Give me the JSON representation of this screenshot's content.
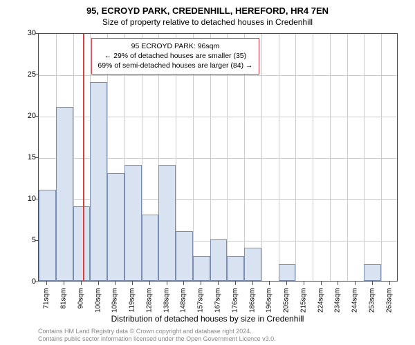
{
  "chart": {
    "type": "histogram",
    "title_main": "95, ECROYD PARK, CREDENHILL, HEREFORD, HR4 7EN",
    "title_sub": "Size of property relative to detached houses in Credenhill",
    "y_label": "Number of detached properties",
    "x_label": "Distribution of detached houses by size in Credenhill",
    "ylim": [
      0,
      30
    ],
    "ytick_step": 5,
    "yticks": [
      0,
      5,
      10,
      15,
      20,
      25,
      30
    ],
    "x_categories": [
      "71sqm",
      "81sqm",
      "90sqm",
      "100sqm",
      "109sqm",
      "119sqm",
      "128sqm",
      "138sqm",
      "148sqm",
      "157sqm",
      "167sqm",
      "176sqm",
      "186sqm",
      "196sqm",
      "205sqm",
      "215sqm",
      "224sqm",
      "234sqm",
      "244sqm",
      "253sqm",
      "263sqm"
    ],
    "bar_values": [
      11,
      21,
      9,
      24,
      13,
      14,
      8,
      14,
      6,
      3,
      5,
      3,
      4,
      0,
      2,
      0,
      0,
      0,
      0,
      2,
      0
    ],
    "bar_color": "#d8e2f0",
    "bar_border": "#7a8db0",
    "grid_color": "#cccccc",
    "axis_color": "#4a4a4a",
    "background_color": "#ffffff",
    "marker_position_index": 2.6,
    "marker_color": "#d04040",
    "annotation": {
      "line1": "95 ECROYD PARK: 96sqm",
      "line2": "← 29% of detached houses are smaller (35)",
      "line3": "69% of semi-detached houses are larger (84) →",
      "border_color": "#d04040"
    },
    "footer_line1": "Contains HM Land Registry data © Crown copyright and database right 2024.",
    "footer_line2": "Contains public sector information licensed under the Open Government Licence v3.0.",
    "footer_color": "#888888",
    "title_fontsize": 13,
    "sub_fontsize": 12,
    "label_fontsize": 12,
    "tick_fontsize": 11
  }
}
